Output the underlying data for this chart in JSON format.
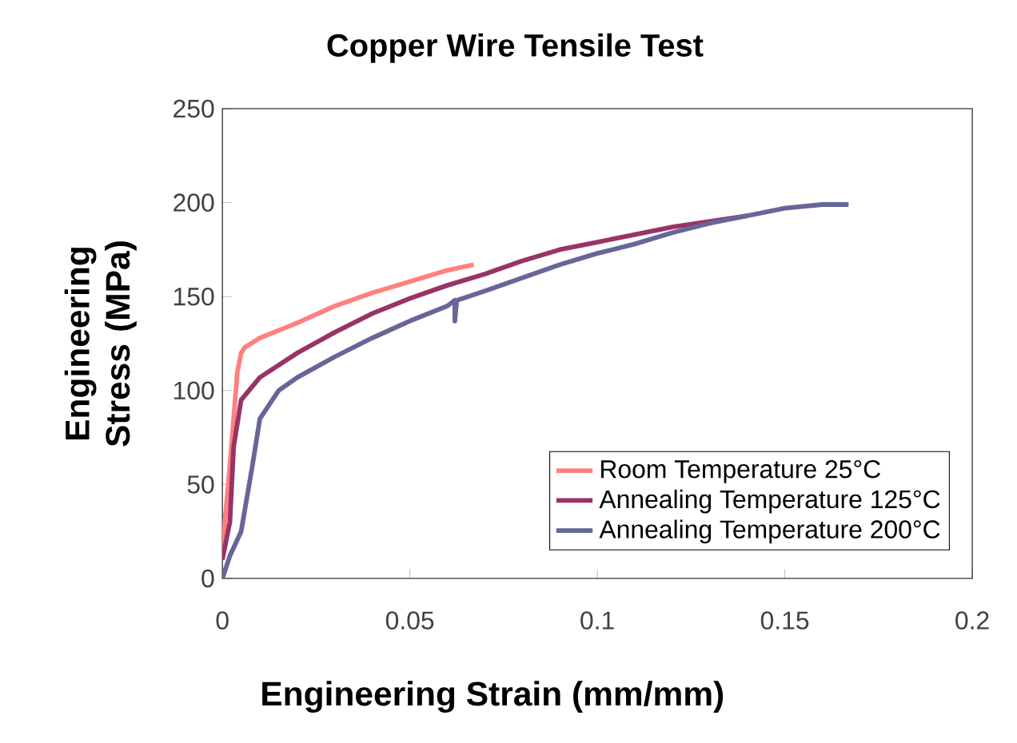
{
  "chart_data": {
    "type": "line",
    "title": "Copper Wire Tensile Test",
    "xlabel": "Engineering Strain (mm/mm)",
    "ylabel": "Engineering Stress (MPa)",
    "xlim": [
      0,
      0.2
    ],
    "ylim": [
      0,
      250
    ],
    "xticks": [
      0,
      0.05,
      0.1,
      0.15,
      0.2
    ],
    "yticks": [
      0,
      50,
      100,
      150,
      200,
      250
    ],
    "grid": false,
    "legend": "bottom right",
    "marker": "none",
    "line_style": "solid",
    "series": [
      {
        "name": "Room Temperature 25°C",
        "color": "#ff8080",
        "x": [
          0,
          0.002,
          0.004,
          0.005,
          0.006,
          0.01,
          0.02,
          0.03,
          0.04,
          0.05,
          0.06,
          0.067
        ],
        "values": [
          15,
          60,
          110,
          120,
          123,
          128,
          136,
          145,
          152,
          158,
          164,
          167
        ]
      },
      {
        "name": "Annealing Temperature 125°C",
        "color": "#993366",
        "x": [
          0,
          0.002,
          0.003,
          0.005,
          0.01,
          0.02,
          0.03,
          0.04,
          0.05,
          0.06,
          0.07,
          0.08,
          0.09,
          0.1,
          0.11,
          0.12,
          0.13,
          0.14
        ],
        "values": [
          10,
          30,
          70,
          95,
          107,
          120,
          131,
          141,
          149,
          156,
          162,
          169,
          175,
          179,
          183,
          187,
          190,
          193
        ]
      },
      {
        "name": "Annealing Temperature 200°C",
        "color": "#666699",
        "x": [
          0,
          0.002,
          0.005,
          0.008,
          0.01,
          0.015,
          0.02,
          0.03,
          0.04,
          0.05,
          0.06,
          0.062,
          0.062,
          0.0625,
          0.07,
          0.08,
          0.09,
          0.1,
          0.11,
          0.12,
          0.13,
          0.14,
          0.15,
          0.16,
          0.167
        ],
        "values": [
          0,
          12,
          25,
          60,
          85,
          100,
          107,
          118,
          128,
          137,
          145,
          148,
          137,
          148,
          153,
          160,
          167,
          173,
          178,
          184,
          189,
          193,
          197,
          199,
          199
        ]
      }
    ]
  }
}
